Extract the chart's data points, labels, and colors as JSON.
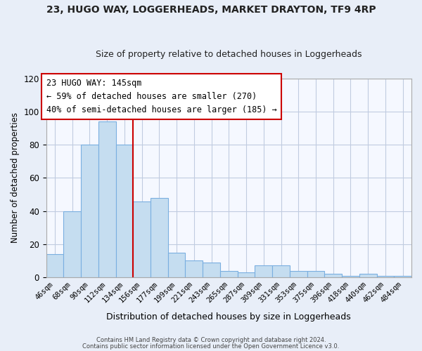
{
  "title1": "23, HUGO WAY, LOGGERHEADS, MARKET DRAYTON, TF9 4RP",
  "title2": "Size of property relative to detached houses in Loggerheads",
  "xlabel": "Distribution of detached houses by size in Loggerheads",
  "ylabel": "Number of detached properties",
  "bar_labels": [
    "46sqm",
    "68sqm",
    "90sqm",
    "112sqm",
    "134sqm",
    "156sqm",
    "177sqm",
    "199sqm",
    "221sqm",
    "243sqm",
    "265sqm",
    "287sqm",
    "309sqm",
    "331sqm",
    "353sqm",
    "375sqm",
    "396sqm",
    "418sqm",
    "440sqm",
    "462sqm",
    "484sqm"
  ],
  "bar_values": [
    14,
    40,
    80,
    94,
    80,
    46,
    48,
    15,
    10,
    9,
    4,
    3,
    7,
    7,
    4,
    4,
    2,
    1,
    2,
    1,
    1
  ],
  "bar_color": "#c5ddf0",
  "bar_edge_color": "#7aafe0",
  "vline_color": "#cc0000",
  "annotation_text": "23 HUGO WAY: 145sqm\n← 59% of detached houses are smaller (270)\n40% of semi-detached houses are larger (185) →",
  "annotation_box_color": "#ffffff",
  "annotation_box_edge_color": "#cc0000",
  "ylim": [
    0,
    120
  ],
  "yticks": [
    0,
    20,
    40,
    60,
    80,
    100,
    120
  ],
  "footer1": "Contains HM Land Registry data © Crown copyright and database right 2024.",
  "footer2": "Contains public sector information licensed under the Open Government Licence v3.0.",
  "bg_color": "#e8eef8",
  "plot_bg_color": "#f5f8ff",
  "grid_color": "#c0cce0"
}
